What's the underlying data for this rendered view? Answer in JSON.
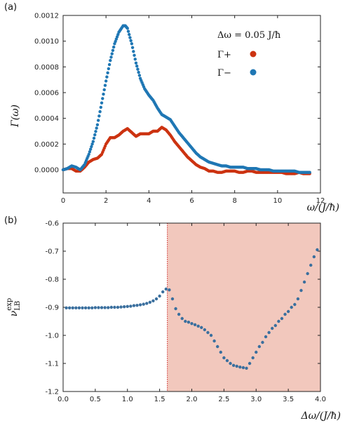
{
  "chart_data": [
    {
      "panel_label": "(a)",
      "type": "scatter",
      "xlabel": "ω/(J/ħ)",
      "ylabel": "Γ(ω)",
      "xlim": [
        0,
        12
      ],
      "ylim": [
        -0.00018,
        0.0012
      ],
      "x_ticks": [
        0,
        2,
        4,
        6,
        8,
        10,
        12
      ],
      "y_ticks": [
        {
          "value": 0.0,
          "label": "0.0000"
        },
        {
          "value": 0.0002,
          "label": "0.0002"
        },
        {
          "value": 0.0004,
          "label": "0.0004"
        },
        {
          "value": 0.0006,
          "label": "0.0006"
        },
        {
          "value": 0.0008,
          "label": "0.0008"
        },
        {
          "value": 0.001,
          "label": "0.0010"
        },
        {
          "value": 0.0012,
          "label": "0.0012"
        }
      ],
      "legend_title": "Δω = 0.05 J/ħ",
      "legend_position": "top-right",
      "grid": false,
      "series": [
        {
          "name": "Γ+",
          "color": "#cc3311",
          "x": [
            0,
            0.2,
            0.4,
            0.6,
            0.8,
            1.0,
            1.2,
            1.4,
            1.6,
            1.8,
            2.0,
            2.2,
            2.4,
            2.6,
            2.8,
            3.0,
            3.2,
            3.4,
            3.6,
            3.8,
            4.0,
            4.2,
            4.4,
            4.6,
            4.8,
            5.0,
            5.2,
            5.4,
            5.6,
            5.8,
            6.0,
            6.2,
            6.4,
            6.6,
            6.8,
            7.0,
            7.2,
            7.4,
            7.6,
            7.8,
            8.0,
            8.2,
            8.4,
            8.6,
            8.8,
            9.0,
            9.2,
            9.4,
            9.6,
            9.8,
            10.0,
            10.2,
            10.4,
            10.6,
            10.8,
            11.0,
            11.2,
            11.5
          ],
          "y": [
            0.0,
            1e-05,
            1e-05,
            -1e-05,
            -1e-05,
            2e-05,
            6e-05,
            8e-05,
            9e-05,
            0.00012,
            0.0002,
            0.00025,
            0.00025,
            0.00027,
            0.0003,
            0.00032,
            0.00029,
            0.00026,
            0.00028,
            0.00028,
            0.00028,
            0.0003,
            0.0003,
            0.00033,
            0.00031,
            0.00027,
            0.00022,
            0.00018,
            0.00014,
            0.0001,
            7e-05,
            4e-05,
            2e-05,
            1e-05,
            -1e-05,
            -1e-05,
            -2e-05,
            -2e-05,
            -1e-05,
            -1e-05,
            -1e-05,
            -2e-05,
            -2e-05,
            -1e-05,
            -1e-05,
            -2e-05,
            -2e-05,
            -2e-05,
            -2e-05,
            -2e-05,
            -2e-05,
            -2e-05,
            -3e-05,
            -3e-05,
            -3e-05,
            -2e-05,
            -3e-05,
            -3e-05
          ]
        },
        {
          "name": "Γ−",
          "color": "#1f77b4",
          "x": [
            0,
            0.2,
            0.4,
            0.6,
            0.8,
            1.0,
            1.2,
            1.4,
            1.6,
            1.8,
            2.0,
            2.2,
            2.4,
            2.6,
            2.8,
            2.9,
            3.0,
            3.2,
            3.4,
            3.6,
            3.8,
            4.0,
            4.2,
            4.4,
            4.6,
            4.8,
            5.0,
            5.2,
            5.4,
            5.6,
            5.8,
            6.0,
            6.2,
            6.4,
            6.6,
            6.8,
            7.0,
            7.2,
            7.4,
            7.6,
            7.8,
            8.0,
            8.2,
            8.4,
            8.6,
            8.8,
            9.0,
            9.2,
            9.4,
            9.6,
            9.8,
            10.0,
            10.2,
            10.4,
            10.6,
            10.8,
            11.0,
            11.2,
            11.5
          ],
          "y": [
            0.0,
            1e-05,
            3e-05,
            2e-05,
            0.0,
            4e-05,
            0.00012,
            0.00022,
            0.00035,
            0.00052,
            0.00069,
            0.00085,
            0.00098,
            0.00107,
            0.00112,
            0.00112,
            0.0011,
            0.00098,
            0.00083,
            0.00071,
            0.00063,
            0.00058,
            0.00054,
            0.00048,
            0.00043,
            0.00041,
            0.00039,
            0.00034,
            0.00029,
            0.00025,
            0.00021,
            0.00017,
            0.00013,
            0.0001,
            8e-05,
            6e-05,
            5e-05,
            4e-05,
            3e-05,
            3e-05,
            2e-05,
            2e-05,
            2e-05,
            2e-05,
            1e-05,
            1e-05,
            1e-05,
            0.0,
            0.0,
            0.0,
            -1e-05,
            -1e-05,
            -1e-05,
            -1e-05,
            -1e-05,
            -1e-05,
            -2e-05,
            -2e-05,
            -2e-05
          ]
        }
      ]
    },
    {
      "panel_label": "(b)",
      "type": "scatter",
      "xlabel": "Δω/(J/ħ)",
      "ylabel": "ν_LB^exp",
      "xlim": [
        0,
        4.0
      ],
      "ylim": [
        -1.2,
        -0.6
      ],
      "x_ticks": [
        {
          "value": 0.0,
          "label": "0.0"
        },
        {
          "value": 0.5,
          "label": "0.5"
        },
        {
          "value": 1.0,
          "label": "1.0"
        },
        {
          "value": 1.5,
          "label": "1.5"
        },
        {
          "value": 2.0,
          "label": "2.0"
        },
        {
          "value": 2.5,
          "label": "2.5"
        },
        {
          "value": 3.0,
          "label": "3.0"
        },
        {
          "value": 3.5,
          "label": "3.5"
        },
        {
          "value": 4.0,
          "label": "4.0"
        }
      ],
      "y_ticks": [
        {
          "value": -1.2,
          "label": "-1.2"
        },
        {
          "value": -1.1,
          "label": "-1.1"
        },
        {
          "value": -1.0,
          "label": "-1.0"
        },
        {
          "value": -0.9,
          "label": "-0.9"
        },
        {
          "value": -0.8,
          "label": "-0.8"
        },
        {
          "value": -0.7,
          "label": "-0.7"
        },
        {
          "value": -0.6,
          "label": "-0.6"
        }
      ],
      "shaded_region": {
        "x_from": 1.62,
        "x_to": 4.0,
        "color": "#f2c8bd"
      },
      "vertical_line": {
        "x": 1.62,
        "color": "#cc2222",
        "style": "dotted"
      },
      "grid": false,
      "series": [
        {
          "color": "#3a6f9e",
          "x": [
            0.05,
            0.1,
            0.15,
            0.2,
            0.25,
            0.3,
            0.35,
            0.4,
            0.45,
            0.5,
            0.55,
            0.6,
            0.65,
            0.7,
            0.75,
            0.8,
            0.85,
            0.9,
            0.95,
            1.0,
            1.05,
            1.1,
            1.15,
            1.2,
            1.25,
            1.3,
            1.35,
            1.4,
            1.45,
            1.5,
            1.55,
            1.6,
            1.65,
            1.7,
            1.75,
            1.8,
            1.85,
            1.9,
            1.95,
            2.0,
            2.05,
            2.1,
            2.15,
            2.2,
            2.25,
            2.3,
            2.35,
            2.4,
            2.45,
            2.5,
            2.55,
            2.6,
            2.65,
            2.7,
            2.75,
            2.8,
            2.85,
            2.9,
            2.95,
            3.0,
            3.05,
            3.1,
            3.15,
            3.2,
            3.25,
            3.3,
            3.35,
            3.4,
            3.45,
            3.5,
            3.55,
            3.6,
            3.65,
            3.7,
            3.75,
            3.8,
            3.85,
            3.9,
            3.95
          ],
          "y": [
            -0.902,
            -0.902,
            -0.902,
            -0.902,
            -0.902,
            -0.902,
            -0.902,
            -0.902,
            -0.902,
            -0.901,
            -0.901,
            -0.901,
            -0.901,
            -0.901,
            -0.9,
            -0.9,
            -0.9,
            -0.899,
            -0.898,
            -0.897,
            -0.896,
            -0.894,
            -0.893,
            -0.891,
            -0.889,
            -0.886,
            -0.882,
            -0.877,
            -0.87,
            -0.86,
            -0.845,
            -0.835,
            -0.838,
            -0.87,
            -0.905,
            -0.925,
            -0.94,
            -0.95,
            -0.953,
            -0.958,
            -0.962,
            -0.967,
            -0.972,
            -0.98,
            -0.99,
            -1.0,
            -1.02,
            -1.04,
            -1.06,
            -1.08,
            -1.09,
            -1.1,
            -1.107,
            -1.11,
            -1.113,
            -1.115,
            -1.117,
            -1.1,
            -1.08,
            -1.06,
            -1.04,
            -1.025,
            -1.005,
            -0.99,
            -0.975,
            -0.965,
            -0.95,
            -0.94,
            -0.925,
            -0.915,
            -0.9,
            -0.89,
            -0.87,
            -0.84,
            -0.81,
            -0.78,
            -0.75,
            -0.72,
            -0.695
          ]
        }
      ]
    }
  ]
}
